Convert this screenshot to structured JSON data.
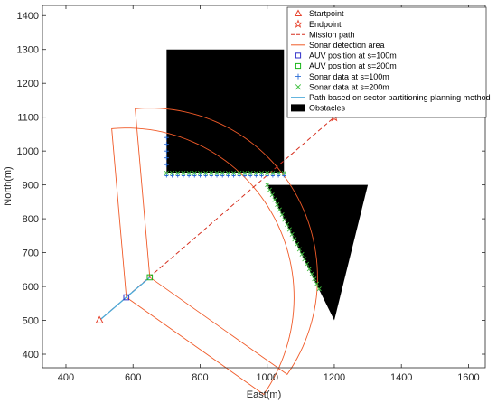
{
  "chart_data": {
    "type": "scatter",
    "title": "",
    "xlabel": "East(m)",
    "ylabel": "North(m)",
    "xlim": [
      330,
      1650
    ],
    "ylim": [
      360,
      1430
    ],
    "xticks": [
      400,
      600,
      800,
      1000,
      1200,
      1400,
      1600
    ],
    "yticks": [
      400,
      500,
      600,
      700,
      800,
      900,
      1000,
      1100,
      1200,
      1300,
      1400
    ],
    "grid": false,
    "legend_position": "top-right",
    "colors": {
      "startpoint": "#e6402a",
      "endpoint": "#e6402a",
      "mission_path": "#d62f1e",
      "sonar_area": "#f05a28",
      "auv": "#3030c8",
      "auv_green": "#19b419",
      "sonar_blue": "#2a6cd6",
      "sonar_green": "#3fc03f",
      "planned_path": "#4aa8d8",
      "obstacles": "#000000"
    },
    "startpoint": [
      500,
      500
    ],
    "endpoint": [
      1200,
      1100
    ],
    "mission_path": [
      [
        500,
        500
      ],
      [
        1200,
        1100
      ]
    ],
    "planned_path": [
      [
        500,
        500
      ],
      [
        580,
        568
      ],
      [
        650,
        627
      ]
    ],
    "auv_100": [
      580,
      568
    ],
    "auv_200": [
      650,
      627
    ],
    "sonar_sectors": [
      {
        "name": "s100",
        "center": [
          580,
          568
        ],
        "radius": 500,
        "start_deg": -35,
        "end_deg": 95
      },
      {
        "name": "s200",
        "center": [
          650,
          627
        ],
        "radius": 500,
        "start_deg": -35,
        "end_deg": 95
      }
    ],
    "obstacles": [
      {
        "shape": "rect",
        "points": [
          [
            700,
            935
          ],
          [
            1050,
            935
          ],
          [
            1050,
            1300
          ],
          [
            700,
            1300
          ]
        ]
      },
      {
        "shape": "triangle",
        "points": [
          [
            1000,
            900
          ],
          [
            1300,
            900
          ],
          [
            1200,
            500
          ]
        ]
      }
    ],
    "sonar_data_100": [
      [
        700,
        980
      ],
      [
        700,
        1000
      ],
      [
        700,
        1020
      ],
      [
        700,
        1040
      ],
      [
        700,
        960
      ]
    ],
    "sonar_data_200_rect": {
      "y": 935,
      "x_start": 700,
      "x_end": 1050,
      "count": 22
    },
    "sonar_data_200_tri": {
      "from": [
        1000,
        900
      ],
      "to": [
        1155,
        593
      ],
      "count": 22
    },
    "legend": [
      {
        "key": "startpoint",
        "label": "Startpoint"
      },
      {
        "key": "endpoint",
        "label": "Endpoint"
      },
      {
        "key": "mission_path",
        "label": "Mission path"
      },
      {
        "key": "sonar_area",
        "label": "Sonar detection area"
      },
      {
        "key": "auv_100",
        "label": "AUV position at s=100m"
      },
      {
        "key": "auv_200",
        "label": "AUV position at s=200m"
      },
      {
        "key": "sonar_100",
        "label": "Sonar data at s=100m"
      },
      {
        "key": "sonar_200",
        "label": "Sonar data at s=200m"
      },
      {
        "key": "planned_path",
        "label": "Path based on sector partitioning planning method"
      },
      {
        "key": "obstacles",
        "label": "Obstacles"
      }
    ]
  }
}
